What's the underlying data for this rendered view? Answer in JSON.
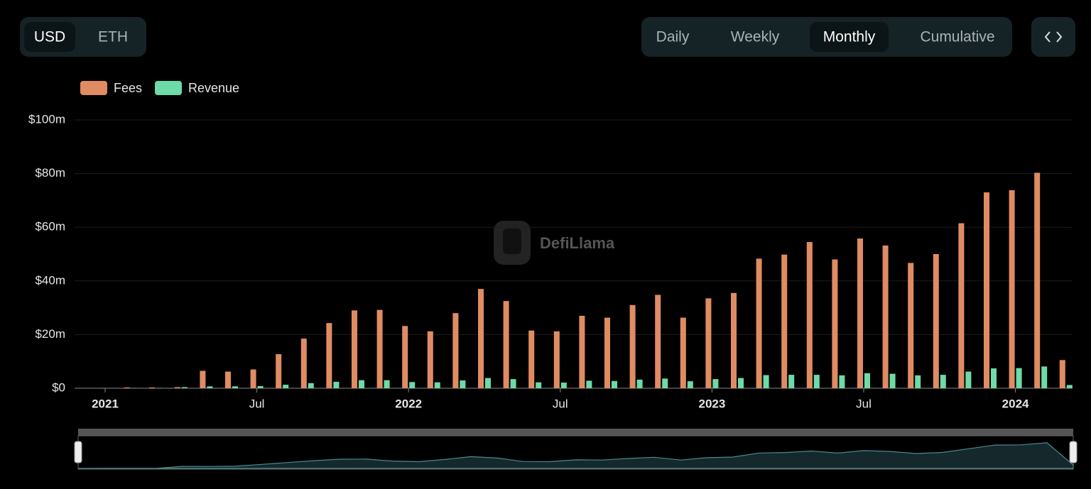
{
  "ui": {
    "currency": [
      "USD",
      "ETH"
    ],
    "active_currency": 0,
    "periods": [
      "Daily",
      "Weekly",
      "Monthly",
      "Cumulative"
    ],
    "active_period": 2,
    "watermark": "DefiLlama"
  },
  "chart_data": {
    "type": "bar",
    "categories": [
      "2021",
      null,
      null,
      null,
      null,
      null,
      "Jul",
      null,
      null,
      null,
      null,
      null,
      "2022",
      null,
      null,
      null,
      null,
      null,
      "Jul",
      null,
      null,
      null,
      null,
      null,
      "2023",
      null,
      null,
      null,
      null,
      null,
      "Jul",
      null,
      null,
      null,
      null,
      null,
      "2024",
      null,
      null
    ],
    "series": [
      {
        "name": "Fees",
        "color": "#e08c63",
        "values": [
          0.1,
          0.3,
          0.3,
          0.4,
          6.5,
          6.2,
          7,
          12.7,
          18.5,
          24.3,
          29,
          29.2,
          23.2,
          21.2,
          28,
          37,
          32.5,
          21.5,
          21.2,
          27,
          26.3,
          31,
          34.8,
          26.3,
          33.5,
          35.5,
          48.3,
          49.8,
          54.5,
          48,
          55.8,
          53.2,
          46.7,
          50,
          61.5,
          73,
          73.8,
          80.3,
          10.5
        ]
      },
      {
        "name": "Revenue",
        "color": "#6ddaa8",
        "values": [
          0,
          0.1,
          0.1,
          0.4,
          0.7,
          0.7,
          0.8,
          1.3,
          1.9,
          2.4,
          3,
          3,
          2.3,
          2.2,
          2.9,
          3.8,
          3.4,
          2.2,
          2.1,
          2.8,
          2.7,
          3.2,
          3.6,
          2.6,
          3.4,
          3.8,
          4.9,
          5,
          5,
          4.8,
          5.6,
          5.4,
          4.8,
          5,
          6.2,
          7.4,
          7.5,
          8.1,
          1.2
        ]
      }
    ],
    "ylim": [
      0,
      100
    ],
    "yticks": [
      {
        "value": 0,
        "label": "$0"
      },
      {
        "value": 20,
        "label": "$20m"
      },
      {
        "value": 40,
        "label": "$40m"
      },
      {
        "value": 60,
        "label": "$60m"
      },
      {
        "value": 80,
        "label": "$80m"
      },
      {
        "value": 100,
        "label": "$100m"
      }
    ],
    "grid": true
  }
}
